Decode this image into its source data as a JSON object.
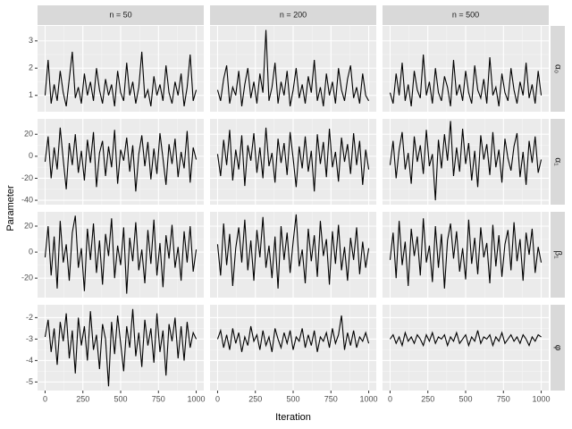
{
  "chart_data": {
    "type": "line",
    "x_label": "Iteration",
    "y_label": "Parameter",
    "columns": [
      "n = 50",
      "n = 200",
      "n = 500"
    ],
    "color": "#000000",
    "grid": true,
    "xlim": [
      -50,
      1050
    ],
    "xticks": [
      0,
      250,
      500,
      750,
      1000
    ],
    "x": [
      0,
      20,
      40,
      60,
      80,
      100,
      120,
      140,
      160,
      180,
      200,
      220,
      240,
      260,
      280,
      300,
      320,
      340,
      360,
      380,
      400,
      420,
      440,
      460,
      480,
      500,
      520,
      540,
      560,
      580,
      600,
      620,
      640,
      660,
      680,
      700,
      720,
      740,
      760,
      780,
      800,
      820,
      840,
      860,
      880,
      900,
      920,
      940,
      960,
      980,
      1000
    ],
    "rows": [
      {
        "label": "α₀",
        "ylim": [
          0.4,
          3.55
        ],
        "yticks": [
          1,
          2,
          3
        ],
        "panels": [
          [
            1.0,
            2.3,
            0.7,
            1.4,
            0.8,
            1.9,
            1.1,
            0.6,
            1.6,
            2.6,
            0.9,
            1.3,
            0.7,
            1.8,
            1.0,
            1.5,
            0.8,
            2.0,
            1.2,
            0.7,
            1.6,
            1.0,
            1.4,
            0.6,
            1.9,
            1.1,
            0.8,
            2.2,
            1.0,
            1.5,
            0.7,
            1.3,
            2.6,
            0.9,
            1.2,
            0.6,
            1.7,
            1.0,
            1.4,
            0.8,
            2.1,
            1.1,
            0.7,
            1.5,
            1.0,
            1.8,
            0.6,
            1.3,
            2.5,
            0.8,
            1.2
          ],
          [
            1.2,
            0.8,
            1.6,
            2.1,
            0.7,
            1.3,
            1.0,
            1.9,
            0.6,
            1.4,
            2.0,
            0.9,
            1.5,
            0.7,
            1.8,
            1.1,
            3.4,
            0.8,
            1.3,
            2.2,
            0.7,
            1.5,
            1.0,
            1.9,
            0.6,
            1.2,
            2.0,
            0.9,
            1.4,
            0.7,
            1.7,
            1.1,
            2.3,
            0.8,
            1.3,
            0.6,
            1.8,
            1.0,
            1.5,
            0.7,
            2.0,
            1.2,
            0.8,
            1.6,
            2.1,
            0.9,
            1.3,
            0.7,
            1.8,
            1.0,
            0.8
          ],
          [
            1.1,
            0.7,
            1.8,
            1.0,
            2.2,
            0.8,
            1.4,
            0.6,
            1.9,
            1.2,
            0.9,
            2.5,
            1.0,
            1.5,
            0.7,
            2.0,
            1.1,
            0.8,
            1.7,
            1.3,
            0.6,
            2.3,
            1.0,
            1.4,
            0.8,
            1.9,
            1.1,
            0.7,
            2.1,
            1.2,
            0.9,
            1.6,
            0.7,
            2.4,
            1.0,
            1.3,
            0.6,
            1.8,
            1.1,
            0.8,
            2.0,
            1.2,
            0.7,
            1.5,
            1.0,
            2.2,
            0.9,
            1.4,
            0.7,
            1.9,
            1.0
          ]
        ]
      },
      {
        "label": "α₁",
        "ylim": [
          -44,
          34
        ],
        "yticks": [
          -40,
          -20,
          0,
          20
        ],
        "panels": [
          [
            -5,
            18,
            -20,
            8,
            -12,
            26,
            -3,
            -30,
            12,
            -8,
            20,
            -15,
            5,
            -22,
            15,
            -6,
            22,
            -28,
            3,
            14,
            -18,
            9,
            -10,
            24,
            -25,
            6,
            -4,
            17,
            -14,
            10,
            -32,
            2,
            19,
            -9,
            13,
            -21,
            7,
            -16,
            21,
            -2,
            -26,
            11,
            -7,
            16,
            -19,
            4,
            -11,
            23,
            -24,
            8,
            -3
          ],
          [
            2,
            -18,
            15,
            -8,
            24,
            -22,
            6,
            -12,
            19,
            -27,
            10,
            -4,
            21,
            -15,
            8,
            -20,
            26,
            -9,
            3,
            -24,
            16,
            -6,
            12,
            -17,
            22,
            -2,
            -28,
            9,
            -11,
            18,
            -14,
            5,
            -32,
            20,
            -7,
            13,
            -19,
            25,
            -10,
            4,
            -23,
            17,
            -5,
            11,
            -16,
            21,
            -8,
            14,
            -26,
            6,
            -12
          ],
          [
            -8,
            14,
            -20,
            6,
            22,
            -12,
            3,
            -25,
            18,
            -5,
            10,
            -16,
            24,
            -9,
            2,
            -40,
            15,
            -11,
            20,
            -4,
            32,
            -18,
            8,
            -14,
            25,
            -7,
            12,
            -22,
            5,
            -28,
            19,
            -3,
            11,
            -17,
            22,
            -10,
            6,
            -24,
            16,
            -2,
            -13,
            9,
            21,
            -19,
            4,
            -26,
            14,
            -6,
            18,
            -15,
            -3
          ]
        ]
      },
      {
        "label": "β₁",
        "ylim": [
          -35,
          31
        ],
        "yticks": [
          -20,
          0,
          20
        ],
        "panels": [
          [
            -4,
            20,
            -18,
            12,
            -28,
            24,
            -8,
            6,
            -22,
            15,
            28,
            -12,
            3,
            -30,
            18,
            -6,
            22,
            -16,
            9,
            -25,
            14,
            -3,
            26,
            -20,
            5,
            -10,
            19,
            -32,
            11,
            -7,
            23,
            -14,
            2,
            -24,
            17,
            -9,
            25,
            -18,
            7,
            -27,
            13,
            -5,
            21,
            -12,
            4,
            -22,
            16,
            -8,
            20,
            -15,
            2
          ],
          [
            6,
            -18,
            22,
            -10,
            14,
            -26,
            3,
            19,
            -8,
            25,
            -14,
            9,
            -22,
            17,
            -4,
            27,
            -12,
            5,
            -20,
            12,
            -28,
            20,
            -6,
            15,
            -16,
            8,
            29,
            -11,
            2,
            -24,
            18,
            -7,
            13,
            -19,
            24,
            -3,
            10,
            -25,
            16,
            -9,
            21,
            -14,
            4,
            -22,
            11,
            -6,
            19,
            -17,
            8,
            -12,
            3
          ],
          [
            -6,
            15,
            -20,
            24,
            -10,
            8,
            -26,
            18,
            -3,
            12,
            -18,
            26,
            -8,
            5,
            -23,
            20,
            -12,
            14,
            -28,
            9,
            22,
            -5,
            16,
            -15,
            3,
            -21,
            25,
            -9,
            11,
            -17,
            19,
            -4,
            7,
            -24,
            21,
            -11,
            13,
            -19,
            6,
            17,
            -14,
            23,
            -7,
            10,
            -22,
            15,
            -2,
            18,
            -16,
            4,
            -8
          ]
        ]
      },
      {
        "label": "φ",
        "ylim": [
          -5.4,
          -1.4
        ],
        "yticks": [
          -5,
          -4,
          -3,
          -2
        ],
        "panels": [
          [
            -2.9,
            -2.1,
            -3.6,
            -2.5,
            -4.2,
            -2.2,
            -3.1,
            -1.8,
            -3.9,
            -2.6,
            -4.6,
            -2.0,
            -3.3,
            -2.4,
            -4.0,
            -1.7,
            -3.5,
            -2.8,
            -4.4,
            -2.3,
            -3.0,
            -5.2,
            -2.2,
            -3.7,
            -1.9,
            -3.2,
            -4.5,
            -2.4,
            -3.4,
            -1.6,
            -3.8,
            -2.7,
            -4.3,
            -2.1,
            -3.3,
            -2.5,
            -4.1,
            -1.8,
            -3.6,
            -2.6,
            -4.7,
            -2.3,
            -3.1,
            -2.0,
            -3.9,
            -2.4,
            -4.0,
            -2.2,
            -3.4,
            -2.7,
            -3.0
          ],
          [
            -3.0,
            -2.6,
            -3.4,
            -2.8,
            -3.5,
            -2.5,
            -3.2,
            -2.7,
            -3.6,
            -2.9,
            -3.3,
            -2.4,
            -3.1,
            -2.8,
            -3.5,
            -2.6,
            -3.3,
            -2.9,
            -3.6,
            -2.5,
            -3.0,
            -3.4,
            -2.7,
            -3.2,
            -2.6,
            -3.5,
            -2.9,
            -3.1,
            -2.5,
            -3.4,
            -2.8,
            -3.3,
            -2.6,
            -3.6,
            -2.9,
            -3.1,
            -2.7,
            -3.4,
            -2.5,
            -3.2,
            -2.8,
            -1.9,
            -3.5,
            -2.7,
            -3.3,
            -2.6,
            -3.4,
            -2.9,
            -3.1,
            -2.7,
            -3.2
          ],
          [
            -3.0,
            -2.8,
            -3.2,
            -2.9,
            -3.3,
            -2.7,
            -3.1,
            -2.9,
            -3.2,
            -2.8,
            -3.0,
            -3.3,
            -2.8,
            -3.1,
            -2.7,
            -3.2,
            -2.9,
            -3.0,
            -2.8,
            -3.3,
            -2.9,
            -3.1,
            -2.7,
            -3.2,
            -3.0,
            -2.8,
            -3.3,
            -2.9,
            -3.1,
            -2.6,
            -3.2,
            -2.9,
            -3.0,
            -2.8,
            -3.3,
            -2.9,
            -3.1,
            -2.7,
            -3.2,
            -3.0,
            -2.8,
            -3.1,
            -2.9,
            -3.2,
            -2.8,
            -3.0,
            -3.3,
            -2.9,
            -3.1,
            -2.8,
            -2.9
          ]
        ]
      }
    ]
  }
}
